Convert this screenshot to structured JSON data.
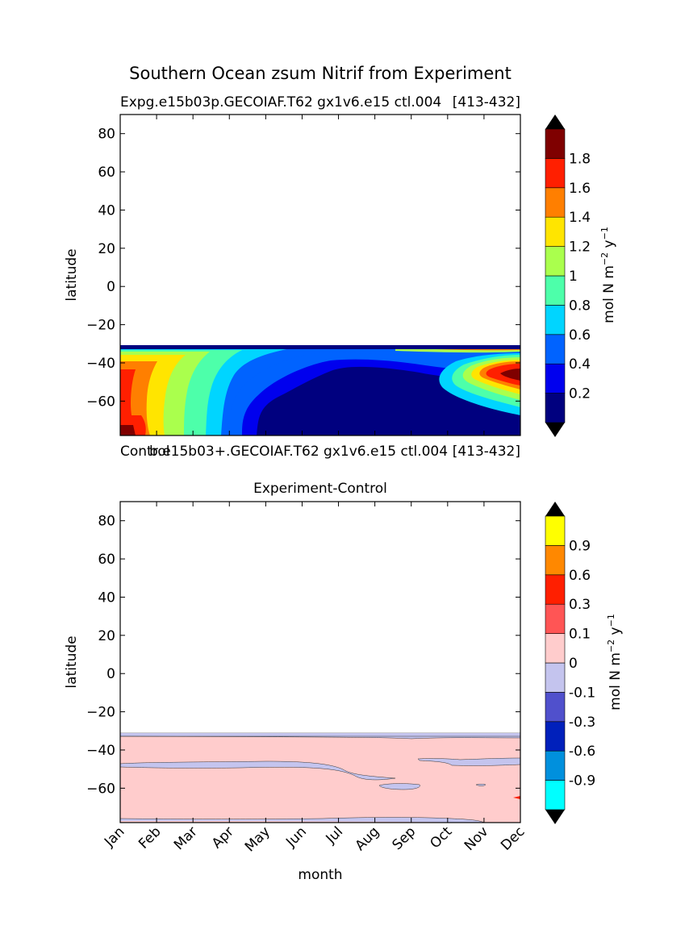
{
  "figure": {
    "suptitle": "Southern Ocean zsum Nitrif from Experiment"
  },
  "chart_data": [
    {
      "type": "contour",
      "panel": "top",
      "title_left": "Expg.e15b03p.GECOIAF.T62 gx1v6.e15 ctl.004",
      "title_right": "[413-432]",
      "xlabel": "",
      "ylabel": "latitude",
      "ylim": [
        -78,
        90
      ],
      "yticks": [
        80,
        60,
        40,
        20,
        0,
        -20,
        -40,
        -60
      ],
      "ytick_labels": [
        "80",
        "60",
        "40",
        "20",
        "0",
        "−20",
        "−40",
        "−60"
      ],
      "x_categories": [
        "Jan",
        "Feb",
        "Mar",
        "Apr",
        "May",
        "Jun",
        "Jul",
        "Aug",
        "Sep",
        "Oct",
        "Nov",
        "Dec"
      ],
      "data_lat_range": [
        -78,
        -32
      ],
      "colorbar": {
        "label_main": "mol N m",
        "label_exp1": "−2",
        "label_mid": " y",
        "label_exp2": "−1",
        "colors": [
          "#00007f",
          "#0000ee",
          "#0063ff",
          "#00d5ff",
          "#4dffaa",
          "#aaff4d",
          "#ffe500",
          "#ff7f00",
          "#ff1f00",
          "#7f0000"
        ],
        "under_color": "#000000",
        "over_color": "#000000",
        "tick_labels": [
          "0.2",
          "0.4",
          "0.6",
          "0.8",
          "1",
          "1.2",
          "1.4",
          "1.6",
          "1.8"
        ]
      }
    },
    {
      "type": "contour",
      "panel": "bottom",
      "overlay_title_left": "Control",
      "overlay_title_mid": "b.e15b03+.GECOIAF.T62 gx1v6.e15 ctl.004",
      "overlay_title_right": "[413-432]",
      "title": "Experiment-Control",
      "xlabel": "month",
      "ylabel": "latitude",
      "ylim": [
        -78,
        90
      ],
      "yticks": [
        80,
        60,
        40,
        20,
        0,
        -20,
        -40,
        -60
      ],
      "ytick_labels": [
        "80",
        "60",
        "40",
        "20",
        "0",
        "−20",
        "−40",
        "−60"
      ],
      "x_categories": [
        "Jan",
        "Feb",
        "Mar",
        "Apr",
        "May",
        "Jun",
        "Jul",
        "Aug",
        "Sep",
        "Oct",
        "Nov",
        "Dec"
      ],
      "data_lat_range": [
        -78,
        -32
      ],
      "colorbar": {
        "label_main": "mol N m",
        "label_exp1": "−2",
        "label_mid": " y",
        "label_exp2": "−1",
        "colors": [
          "#00ffff",
          "#0090dd",
          "#0020bb",
          "#5050cc",
          "#c4c4ee",
          "#ffcccc",
          "#ff5555",
          "#ff1f00",
          "#ff8800",
          "#ffff00"
        ],
        "under_color": "#000000",
        "over_color": "#000000",
        "tick_labels": [
          "-0.9",
          "-0.6",
          "-0.3",
          "-0.1",
          "0",
          "0.1",
          "0.3",
          "0.6",
          "0.9"
        ]
      }
    }
  ]
}
